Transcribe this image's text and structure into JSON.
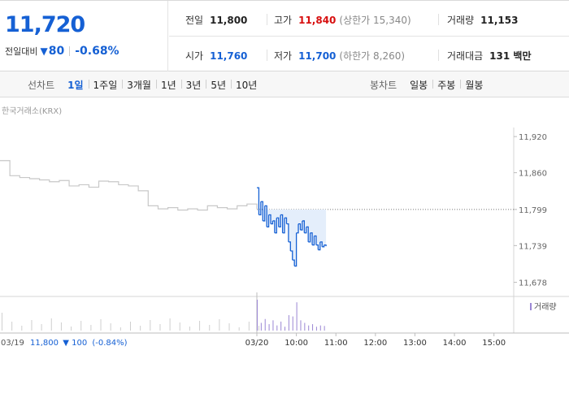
{
  "summary": {
    "price": "11,720",
    "change_label": "전일대비",
    "change_arrow": "▼",
    "change_value": "80",
    "change_pct": "-0.68%"
  },
  "stats": {
    "prev_close": {
      "label": "전일",
      "value": "11,800"
    },
    "high": {
      "label": "고가",
      "value": "11,840",
      "sub": "(상한가 15,340)"
    },
    "volume": {
      "label": "거래량",
      "value": "11,153"
    },
    "open": {
      "label": "시가",
      "value": "11,760"
    },
    "low": {
      "label": "저가",
      "value": "11,700",
      "sub": "(하한가 8,260)"
    },
    "amount": {
      "label": "거래대금",
      "value": "131 백만"
    }
  },
  "toolbar": {
    "line_label": "선차트",
    "line_periods": [
      "1일",
      "1주일",
      "3개월",
      "1년",
      "3년",
      "5년",
      "10년"
    ],
    "selected_period": "1일",
    "candle_label": "봉차트",
    "candle_periods": [
      "일봉",
      "주봉",
      "월봉"
    ]
  },
  "colors": {
    "up": "#d70f0f",
    "down": "#1560d4",
    "prev_day_line": "#c8c8c8",
    "down_fill": "#e4eefb"
  },
  "chart_data": {
    "type": "line",
    "source_label": "한국거래소(KRX)",
    "y_ticks": [
      11920,
      11860,
      11799,
      11739,
      11678
    ],
    "y_tick_labels": [
      "11,920",
      "11,860",
      "11,799",
      "11,739",
      "11,678"
    ],
    "ylim": [
      11668,
      11935
    ],
    "reference_line": 11799,
    "legend": "거래량",
    "prev_day_footer": "03/19 11,800 ▼100 (-0.84%)",
    "prev_day_footer_parts": {
      "date": "03/19",
      "price": "11,800",
      "arrow": "▼",
      "change": "100",
      "pct": "(-0.84%)"
    },
    "x_labels": [
      "03/20",
      "10:00",
      "11:00",
      "12:00",
      "13:00",
      "14:00",
      "15:00"
    ],
    "x_label_minutes": [
      0,
      60,
      120,
      180,
      240,
      300,
      360
    ],
    "session_minutes": 390,
    "prev_day_series": {
      "x_minutes": [
        0,
        15,
        30,
        45,
        60,
        75,
        90,
        105,
        120,
        135,
        150,
        165,
        180,
        195,
        210,
        225,
        240,
        255,
        270,
        285,
        300,
        315,
        330,
        345,
        360,
        375,
        390
      ],
      "values": [
        11880,
        11855,
        11852,
        11850,
        11848,
        11845,
        11847,
        11838,
        11840,
        11836,
        11846,
        11845,
        11840,
        11838,
        11830,
        11805,
        11800,
        11802,
        11798,
        11800,
        11798,
        11805,
        11802,
        11800,
        11805,
        11808,
        11800
      ]
    },
    "today_series": {
      "x_minutes": [
        0,
        3,
        6,
        9,
        12,
        15,
        18,
        21,
        24,
        27,
        30,
        33,
        36,
        39,
        42,
        45,
        48,
        51,
        54,
        57,
        60,
        63,
        66,
        69,
        72,
        75,
        78,
        81,
        84,
        87,
        90,
        93,
        96,
        99,
        102,
        105
      ],
      "values": [
        11835,
        11790,
        11812,
        11780,
        11805,
        11770,
        11790,
        11775,
        11780,
        11760,
        11785,
        11770,
        11790,
        11760,
        11785,
        11775,
        11745,
        11730,
        11715,
        11705,
        11760,
        11775,
        11765,
        11780,
        11760,
        11770,
        11745,
        11760,
        11740,
        11755,
        11740,
        11732,
        11745,
        11737,
        11740,
        11738
      ]
    },
    "volume_x_minutes": [
      0,
      6,
      12,
      18,
      24,
      30,
      36,
      42,
      48,
      54,
      60,
      66,
      72,
      78,
      84,
      90,
      96,
      102
    ],
    "volume_values": [
      120,
      30,
      45,
      25,
      40,
      20,
      35,
      15,
      60,
      55,
      110,
      40,
      30,
      20,
      25,
      15,
      20,
      18
    ]
  }
}
